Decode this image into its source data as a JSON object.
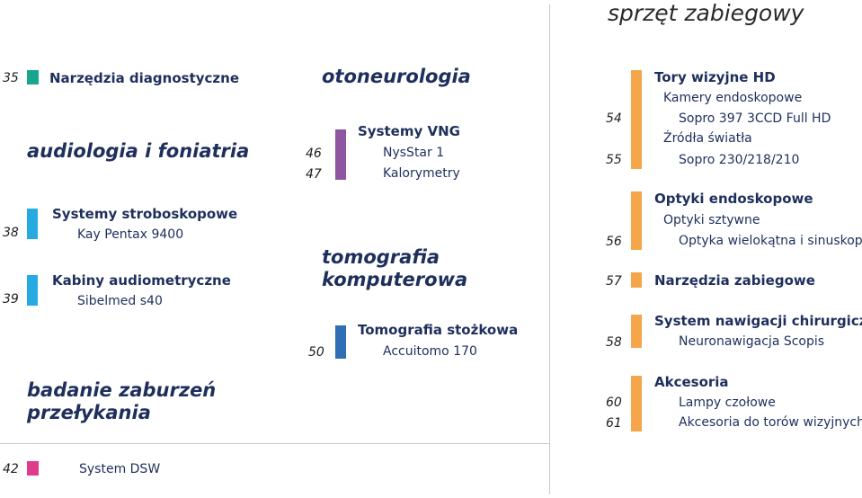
{
  "page_title": "sprzęt zabiegowy",
  "colors": {
    "teal": "#1aa68e",
    "cyan": "#27a9e1",
    "purple": "#8e55a1",
    "blue": "#2e6fb5",
    "orange": "#f5a54a",
    "pink": "#e13a8a",
    "text_dark": "#1e2f5c"
  },
  "left": {
    "item35": {
      "num": "35",
      "label": "Narzędzia diagnostyczne"
    },
    "section_audio": "audiologia i foniatria",
    "item38": {
      "num": "38",
      "label": "Systemy stroboskopowe",
      "sub": "Kay Pentax 9400"
    },
    "item39": {
      "num": "39",
      "label": "Kabiny audiometryczne",
      "sub": "Sibelmed s40"
    },
    "section_swallow_1": "badanie zaburzeń",
    "section_swallow_2": "przełykania",
    "item42": {
      "num": "42",
      "label": "System DSW"
    }
  },
  "middle": {
    "section_oto": "otoneurologia",
    "vng": {
      "label": "Systemy VNG",
      "num1": "46",
      "sub1": "NysStar 1",
      "num2": "47",
      "sub2": "Kalorymetry"
    },
    "section_ct_1": "tomografia",
    "section_ct_2": "komputerowa",
    "ct": {
      "label": "Tomografia stożkowa",
      "num": "50",
      "sub": "Accuitomo 170"
    }
  },
  "right": {
    "hd": {
      "label": "Tory wizyjne HD",
      "sub1": "Kamery endoskopowe",
      "num1": "54",
      "sub2": "Sopro 397 3CCD Full HD",
      "sub3": "Źródła światła",
      "num2": "55",
      "sub4": "Sopro 230/218/210"
    },
    "optics": {
      "label": "Optyki endoskopowe",
      "sub1": "Optyki sztywne",
      "num": "56",
      "sub2": "Optyka wielokątna i sinuskopy"
    },
    "tools": {
      "num": "57",
      "label": "Narzędzia zabiegowe"
    },
    "nav": {
      "label": "System nawigacji chirurgicznej",
      "num": "58",
      "sub": "Neuronawigacja Scopis"
    },
    "acc": {
      "label": "Akcesoria",
      "num1": "60",
      "sub1": "Lampy czołowe",
      "num2": "61",
      "sub2": "Akcesoria do torów wizyjnych"
    }
  }
}
